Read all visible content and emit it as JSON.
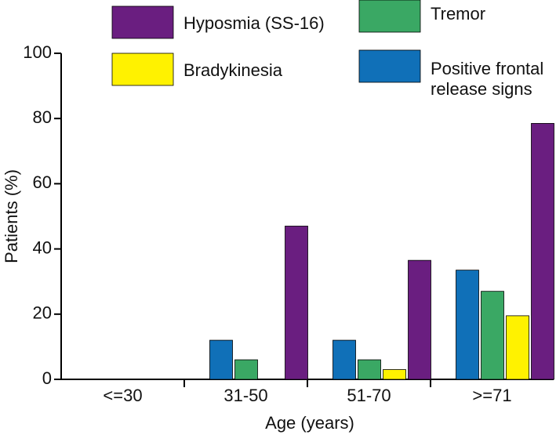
{
  "chart_data": {
    "type": "bar",
    "x_label": "Age (years)",
    "y_label": "Patients (%)",
    "categories": [
      "<=30",
      "31-50",
      "51-70",
      ">=71"
    ],
    "series": [
      {
        "name": "Positive frontal release signs",
        "color": "#1070b8",
        "values": [
          0,
          12,
          12,
          33.5
        ]
      },
      {
        "name": "Tremor",
        "color": "#3aa864",
        "values": [
          0,
          6,
          6,
          27
        ]
      },
      {
        "name": "Bradykinesia",
        "color": "#fff200",
        "values": [
          0,
          0,
          3,
          19.5
        ]
      },
      {
        "name": "Hyposmia (SS-16)",
        "color": "#6a1e80",
        "values": [
          0,
          47,
          36.5,
          78.5
        ]
      }
    ],
    "ylim": [
      0,
      100
    ],
    "yticks": [
      0,
      20,
      40,
      60,
      80,
      100
    ]
  }
}
